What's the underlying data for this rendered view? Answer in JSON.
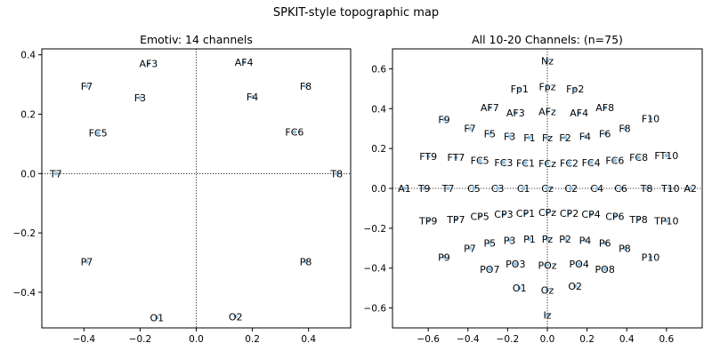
{
  "figure": {
    "suptitle": "SPKIT-style topographic map"
  },
  "chart_data": [
    {
      "type": "scatter",
      "title": "Emotiv: 14 channels",
      "xlabel": "",
      "ylabel": "",
      "xlim": [
        -0.55,
        0.55
      ],
      "ylim": [
        -0.52,
        0.42
      ],
      "xticks": [
        -0.4,
        -0.2,
        0.0,
        0.2,
        0.4
      ],
      "yticks": [
        -0.4,
        -0.2,
        0.0,
        0.2,
        0.4
      ],
      "xticklabels": [
        "−0.4",
        "−0.2",
        "0.0",
        "0.2",
        "0.4"
      ],
      "yticklabels": [
        "−0.4",
        "−0.2",
        "0.0",
        "0.2",
        "0.4"
      ],
      "grid": false,
      "reference_lines": {
        "x": 0,
        "y": 0,
        "style": "dotted"
      },
      "points": [
        {
          "label": "AF3",
          "x": -0.17,
          "y": 0.37
        },
        {
          "label": "AF4",
          "x": 0.17,
          "y": 0.375
        },
        {
          "label": "F7",
          "x": -0.39,
          "y": 0.295
        },
        {
          "label": "F8",
          "x": 0.39,
          "y": 0.295
        },
        {
          "label": "F3",
          "x": -0.2,
          "y": 0.255
        },
        {
          "label": "F4",
          "x": 0.2,
          "y": 0.258
        },
        {
          "label": "FC5",
          "x": -0.35,
          "y": 0.137
        },
        {
          "label": "FC6",
          "x": 0.35,
          "y": 0.14
        },
        {
          "label": "T7",
          "x": -0.5,
          "y": 0.0
        },
        {
          "label": "T8",
          "x": 0.5,
          "y": 0.0
        },
        {
          "label": "P7",
          "x": -0.39,
          "y": -0.297
        },
        {
          "label": "P8",
          "x": 0.39,
          "y": -0.297
        },
        {
          "label": "O1",
          "x": -0.14,
          "y": -0.485
        },
        {
          "label": "O2",
          "x": 0.14,
          "y": -0.482
        }
      ]
    },
    {
      "type": "scatter",
      "title": "All 10-20 Channels: (n=75)",
      "xlabel": "",
      "ylabel": "",
      "xlim": [
        -0.78,
        0.78
      ],
      "ylim": [
        -0.7,
        0.7
      ],
      "xticks": [
        -0.6,
        -0.4,
        -0.2,
        0.0,
        0.2,
        0.4,
        0.6
      ],
      "yticks": [
        -0.6,
        -0.4,
        -0.2,
        0.0,
        0.2,
        0.4,
        0.6
      ],
      "xticklabels": [
        "−0.6",
        "−0.4",
        "−0.2",
        "0.0",
        "0.2",
        "0.4",
        "0.6"
      ],
      "yticklabels": [
        "−0.6",
        "−0.4",
        "−0.2",
        "0.0",
        "0.2",
        "0.4",
        "0.6"
      ],
      "grid": false,
      "reference_lines": {
        "x": 0,
        "y": 0,
        "style": "dotted"
      },
      "points": [
        {
          "label": "Nz",
          "x": 0.0,
          "y": 0.64
        },
        {
          "label": "Fp1",
          "x": -0.14,
          "y": 0.5
        },
        {
          "label": "Fpz",
          "x": 0.0,
          "y": 0.51
        },
        {
          "label": "Fp2",
          "x": 0.14,
          "y": 0.5
        },
        {
          "label": "AF7",
          "x": -0.29,
          "y": 0.405
        },
        {
          "label": "AF3",
          "x": -0.16,
          "y": 0.38
        },
        {
          "label": "AFz",
          "x": 0.0,
          "y": 0.385
        },
        {
          "label": "AF4",
          "x": 0.16,
          "y": 0.38
        },
        {
          "label": "AF8",
          "x": 0.29,
          "y": 0.405
        },
        {
          "label": "F9",
          "x": -0.52,
          "y": 0.345
        },
        {
          "label": "F7",
          "x": -0.39,
          "y": 0.3
        },
        {
          "label": "F5",
          "x": -0.29,
          "y": 0.275
        },
        {
          "label": "F3",
          "x": -0.19,
          "y": 0.26
        },
        {
          "label": "F1",
          "x": -0.09,
          "y": 0.255
        },
        {
          "label": "Fz",
          "x": 0.0,
          "y": 0.255
        },
        {
          "label": "F2",
          "x": 0.09,
          "y": 0.255
        },
        {
          "label": "F4",
          "x": 0.19,
          "y": 0.26
        },
        {
          "label": "F6",
          "x": 0.29,
          "y": 0.275
        },
        {
          "label": "F8",
          "x": 0.39,
          "y": 0.3
        },
        {
          "label": "F10",
          "x": 0.52,
          "y": 0.35
        },
        {
          "label": "FT9",
          "x": -0.6,
          "y": 0.16
        },
        {
          "label": "FT7",
          "x": -0.46,
          "y": 0.155
        },
        {
          "label": "FC5",
          "x": -0.34,
          "y": 0.14
        },
        {
          "label": "FC3",
          "x": -0.22,
          "y": 0.13
        },
        {
          "label": "FC1",
          "x": -0.11,
          "y": 0.128
        },
        {
          "label": "FCz",
          "x": 0.0,
          "y": 0.125
        },
        {
          "label": "FC2",
          "x": 0.11,
          "y": 0.128
        },
        {
          "label": "FC4",
          "x": 0.22,
          "y": 0.13
        },
        {
          "label": "FC6",
          "x": 0.34,
          "y": 0.14
        },
        {
          "label": "FC8",
          "x": 0.46,
          "y": 0.155
        },
        {
          "label": "FT10",
          "x": 0.6,
          "y": 0.165
        },
        {
          "label": "A1",
          "x": -0.72,
          "y": 0.0
        },
        {
          "label": "T9",
          "x": -0.62,
          "y": 0.0
        },
        {
          "label": "T7",
          "x": -0.5,
          "y": 0.0
        },
        {
          "label": "C5",
          "x": -0.37,
          "y": 0.0
        },
        {
          "label": "C3",
          "x": -0.25,
          "y": 0.0
        },
        {
          "label": "C1",
          "x": -0.12,
          "y": 0.0
        },
        {
          "label": "Cz",
          "x": 0.0,
          "y": 0.0
        },
        {
          "label": "C2",
          "x": 0.12,
          "y": 0.0
        },
        {
          "label": "C4",
          "x": 0.25,
          "y": 0.0
        },
        {
          "label": "C6",
          "x": 0.37,
          "y": 0.0
        },
        {
          "label": "T8",
          "x": 0.5,
          "y": 0.0
        },
        {
          "label": "T10",
          "x": 0.62,
          "y": 0.0
        },
        {
          "label": "A2",
          "x": 0.72,
          "y": 0.0
        },
        {
          "label": "TP9",
          "x": -0.6,
          "y": -0.163
        },
        {
          "label": "TP7",
          "x": -0.46,
          "y": -0.155
        },
        {
          "label": "CP5",
          "x": -0.34,
          "y": -0.14
        },
        {
          "label": "CP3",
          "x": -0.22,
          "y": -0.13
        },
        {
          "label": "CP1",
          "x": -0.11,
          "y": -0.125
        },
        {
          "label": "CPz",
          "x": 0.0,
          "y": -0.12
        },
        {
          "label": "CP2",
          "x": 0.11,
          "y": -0.125
        },
        {
          "label": "CP4",
          "x": 0.22,
          "y": -0.13
        },
        {
          "label": "CP6",
          "x": 0.34,
          "y": -0.14
        },
        {
          "label": "TP8",
          "x": 0.46,
          "y": -0.155
        },
        {
          "label": "TP10",
          "x": 0.6,
          "y": -0.163
        },
        {
          "label": "P9",
          "x": -0.52,
          "y": -0.345
        },
        {
          "label": "P7",
          "x": -0.39,
          "y": -0.3
        },
        {
          "label": "P5",
          "x": -0.29,
          "y": -0.275
        },
        {
          "label": "P3",
          "x": -0.19,
          "y": -0.26
        },
        {
          "label": "P1",
          "x": -0.09,
          "y": -0.255
        },
        {
          "label": "Pz",
          "x": 0.0,
          "y": -0.255
        },
        {
          "label": "P2",
          "x": 0.09,
          "y": -0.255
        },
        {
          "label": "P4",
          "x": 0.19,
          "y": -0.26
        },
        {
          "label": "P6",
          "x": 0.29,
          "y": -0.275
        },
        {
          "label": "P8",
          "x": 0.39,
          "y": -0.3
        },
        {
          "label": "P10",
          "x": 0.52,
          "y": -0.345
        },
        {
          "label": "PO7",
          "x": -0.29,
          "y": -0.405
        },
        {
          "label": "PO3",
          "x": -0.16,
          "y": -0.38
        },
        {
          "label": "POz",
          "x": 0.0,
          "y": -0.385
        },
        {
          "label": "PO4",
          "x": 0.16,
          "y": -0.38
        },
        {
          "label": "PO8",
          "x": 0.29,
          "y": -0.405
        },
        {
          "label": "O1",
          "x": -0.14,
          "y": -0.5
        },
        {
          "label": "Oz",
          "x": 0.0,
          "y": -0.51
        },
        {
          "label": "O2",
          "x": 0.14,
          "y": -0.49
        },
        {
          "label": "Iz",
          "x": 0.0,
          "y": -0.635
        }
      ]
    }
  ],
  "colors": {
    "point": "#8ec4ea",
    "label": "#000000",
    "axes": "#000000",
    "refline": "#000000",
    "background": "#ffffff"
  }
}
